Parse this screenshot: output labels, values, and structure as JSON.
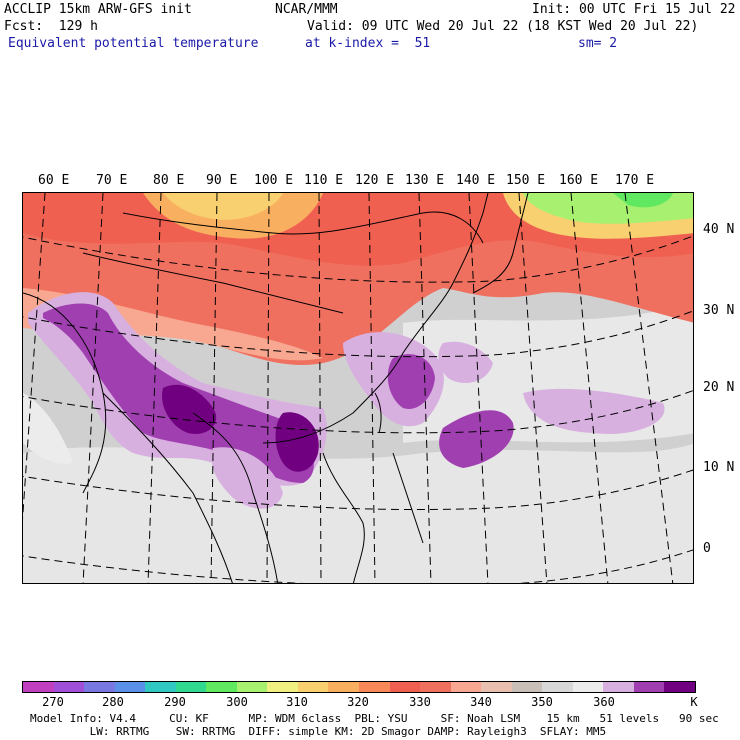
{
  "header": {
    "model": "ACCLIP 15km ARW-GFS init",
    "fcst": "Fcst:  129 h",
    "variable": "Equivalent potential temperature",
    "org": "NCAR/MMM",
    "init": "Init: 00 UTC Fri 15 Jul 22",
    "valid": "Valid: 09 UTC Wed 20 Jul 22 (18 KST Wed 20 Jul 22)",
    "level": "at k-index =  51",
    "smooth": "sm= 2"
  },
  "map": {
    "lon_labels": [
      "60 E",
      "70 E",
      "80 E",
      "90 E",
      "100 E",
      "110 E",
      "120 E",
      "130 E",
      "140 E",
      "150 E",
      "160 E",
      "170 E"
    ],
    "lat_labels": [
      "40 N",
      "30 N",
      "20 N",
      "10 N",
      "0"
    ]
  },
  "colorbar": {
    "colors": [
      "#c040c0",
      "#a050d8",
      "#7878e0",
      "#5a90e8",
      "#30c8c0",
      "#30d890",
      "#60e860",
      "#a8f070",
      "#f0f080",
      "#f8d070",
      "#f8b060",
      "#f88858",
      "#f06050",
      "#f07060",
      "#f8a890",
      "#e8c0b0",
      "#c8c0b8",
      "#d8d8d8",
      "#ececec",
      "#d8b0e0",
      "#a040b0",
      "#700080"
    ],
    "ticks": [
      "270",
      "280",
      "290",
      "300",
      "310",
      "320",
      "330",
      "340",
      "350",
      "360"
    ],
    "unit": "K"
  },
  "footer": {
    "line1": "Model Info: V4.4     CU: KF      MP: WDM 6class  PBL: YSU     SF: Noah LSM    15 km   51 levels   90 sec",
    "line2": "         LW: RRTMG    SW: RRTMG  DIFF: simple KM: 2D Smagor DAMP: Rayleigh3  SFLAY: MM5"
  }
}
